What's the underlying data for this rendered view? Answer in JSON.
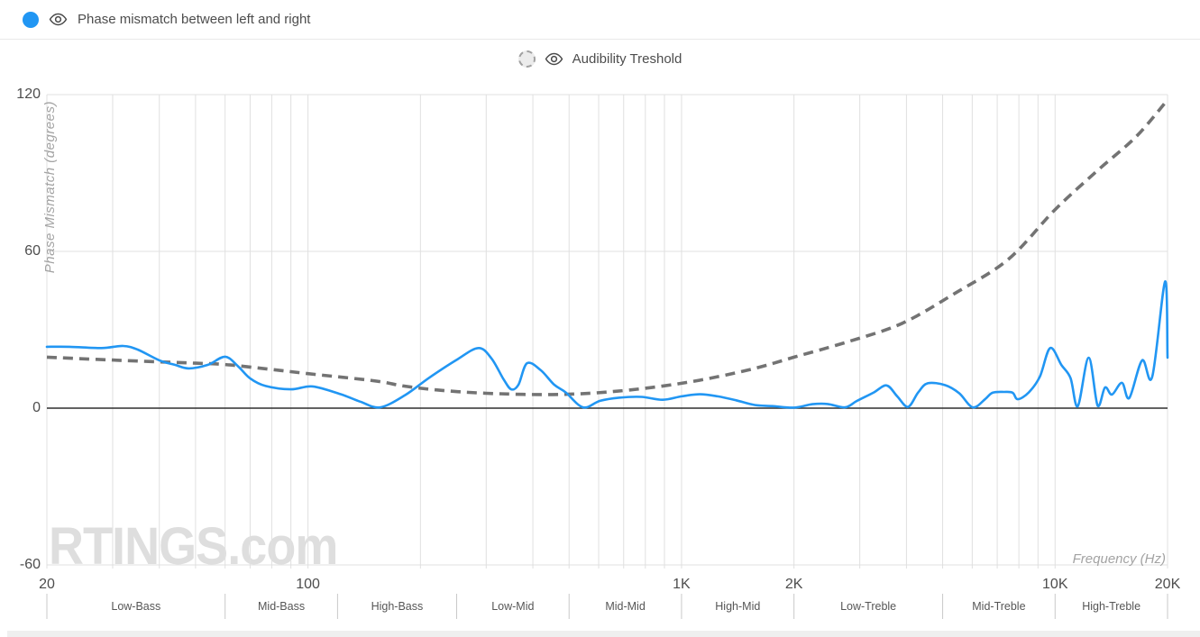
{
  "legend": {
    "primary": {
      "label": "Phase mismatch between left and right",
      "swatch_color": "#2196f3"
    },
    "secondary": {
      "label": "Audibility Treshold",
      "swatch_fill": "#ececec",
      "swatch_border": "#a0a0a0"
    }
  },
  "watermark": "RTINGS.com",
  "colors": {
    "accent_blue": "#2196f3",
    "threshold_gray": "#737373",
    "gridline": "#e0e0e0",
    "zero_line": "#2e2e2e",
    "tick_text": "#4d4d4d",
    "axis_title_text": "#a3a3a3"
  },
  "chart_data": {
    "type": "line",
    "title": "Phase mismatch between left and right",
    "xlabel": "Frequency (Hz)",
    "ylabel": "Phase Mismatch (degrees)",
    "x_scale": "log",
    "xlim": [
      20,
      20000
    ],
    "ylim": [
      -60,
      120
    ],
    "grid": "log minor vertical gridlines, horizontal lines at 60-degree steps",
    "legend_position": "top",
    "x_ticks": [
      {
        "value": 20,
        "label": "20"
      },
      {
        "value": 100,
        "label": "100"
      },
      {
        "value": 1000,
        "label": "1K"
      },
      {
        "value": 2000,
        "label": "2K"
      },
      {
        "value": 10000,
        "label": "10K"
      },
      {
        "value": 20000,
        "label": "20K"
      }
    ],
    "y_ticks": [
      {
        "value": 120,
        "label": "120"
      },
      {
        "value": 60,
        "label": "60"
      },
      {
        "value": 0,
        "label": "0"
      },
      {
        "value": -60,
        "label": "-60"
      }
    ],
    "frequency_bands": [
      {
        "label": "Low-Bass",
        "from": 20,
        "to": 60
      },
      {
        "label": "Mid-Bass",
        "from": 60,
        "to": 120
      },
      {
        "label": "High-Bass",
        "from": 120,
        "to": 250
      },
      {
        "label": "Low-Mid",
        "from": 250,
        "to": 500
      },
      {
        "label": "Mid-Mid",
        "from": 500,
        "to": 1000
      },
      {
        "label": "High-Mid",
        "from": 1000,
        "to": 2000
      },
      {
        "label": "Low-Treble",
        "from": 2000,
        "to": 5000
      },
      {
        "label": "Mid-Treble",
        "from": 5000,
        "to": 10000
      },
      {
        "label": "High-Treble",
        "from": 10000,
        "to": 20000
      }
    ],
    "series": [
      {
        "name": "Phase mismatch between left and right",
        "color": "#2196f3",
        "line_style": "solid",
        "points": [
          [
            20,
            23.5
          ],
          [
            23,
            23.5
          ],
          [
            28,
            23
          ],
          [
            32,
            23.8
          ],
          [
            35,
            22.4
          ],
          [
            40,
            18.3
          ],
          [
            44,
            16.6
          ],
          [
            48,
            15.2
          ],
          [
            54,
            16.6
          ],
          [
            60,
            19.7
          ],
          [
            65,
            16
          ],
          [
            70,
            11.4
          ],
          [
            77,
            8.5
          ],
          [
            90,
            7.2
          ],
          [
            103,
            8.3
          ],
          [
            123,
            5.2
          ],
          [
            138,
            2.5
          ],
          [
            156,
            0.3
          ],
          [
            182,
            5
          ],
          [
            210,
            11.4
          ],
          [
            250,
            18.5
          ],
          [
            286,
            23
          ],
          [
            310,
            19
          ],
          [
            334,
            11
          ],
          [
            350,
            7.2
          ],
          [
            366,
            9
          ],
          [
            386,
            17.2
          ],
          [
            420,
            14.5
          ],
          [
            456,
            9
          ],
          [
            490,
            6
          ],
          [
            545,
            0.3
          ],
          [
            605,
            2.8
          ],
          [
            680,
            4
          ],
          [
            780,
            4.3
          ],
          [
            890,
            3.2
          ],
          [
            1000,
            4.5
          ],
          [
            1120,
            5.3
          ],
          [
            1250,
            4.5
          ],
          [
            1400,
            3
          ],
          [
            1570,
            1.2
          ],
          [
            1750,
            0.8
          ],
          [
            2000,
            0.2
          ],
          [
            2240,
            1.5
          ],
          [
            2460,
            1.6
          ],
          [
            2740,
            0.3
          ],
          [
            2950,
            2.8
          ],
          [
            3270,
            6
          ],
          [
            3540,
            8.7
          ],
          [
            3780,
            4.5
          ],
          [
            4040,
            0.5
          ],
          [
            4300,
            6
          ],
          [
            4560,
            9.5
          ],
          [
            5080,
            8.8
          ],
          [
            5540,
            5.7
          ],
          [
            6020,
            0.3
          ],
          [
            6500,
            3.5
          ],
          [
            6800,
            5.9
          ],
          [
            7300,
            6.2
          ],
          [
            7700,
            5.9
          ],
          [
            7940,
            3.4
          ],
          [
            8500,
            6
          ],
          [
            9100,
            12
          ],
          [
            9700,
            23
          ],
          [
            10400,
            16.5
          ],
          [
            11000,
            11.5
          ],
          [
            11500,
            0.7
          ],
          [
            12300,
            19.3
          ],
          [
            13000,
            0.9
          ],
          [
            13600,
            7.9
          ],
          [
            14200,
            5.2
          ],
          [
            15100,
            9.7
          ],
          [
            15800,
            3.9
          ],
          [
            17100,
            18.3
          ],
          [
            18200,
            12
          ],
          [
            19700,
            48.5
          ],
          [
            20000,
            19.3
          ]
        ]
      },
      {
        "name": "Audibility Treshold",
        "color": "#737373",
        "line_style": "dashed",
        "points": [
          [
            20,
            19.5
          ],
          [
            30,
            18.4
          ],
          [
            50,
            17.2
          ],
          [
            60,
            16.7
          ],
          [
            80,
            14.8
          ],
          [
            100,
            13.2
          ],
          [
            150,
            10.5
          ],
          [
            180,
            8.5
          ],
          [
            220,
            7
          ],
          [
            300,
            5.7
          ],
          [
            450,
            5.2
          ],
          [
            650,
            6.3
          ],
          [
            1000,
            9.5
          ],
          [
            1500,
            14.5
          ],
          [
            2000,
            19.5
          ],
          [
            2800,
            25.5
          ],
          [
            3900,
            32.5
          ],
          [
            5400,
            44
          ],
          [
            7500,
            57
          ],
          [
            10000,
            76
          ],
          [
            13000,
            91
          ],
          [
            16500,
            104
          ],
          [
            20000,
            118
          ]
        ]
      }
    ]
  }
}
